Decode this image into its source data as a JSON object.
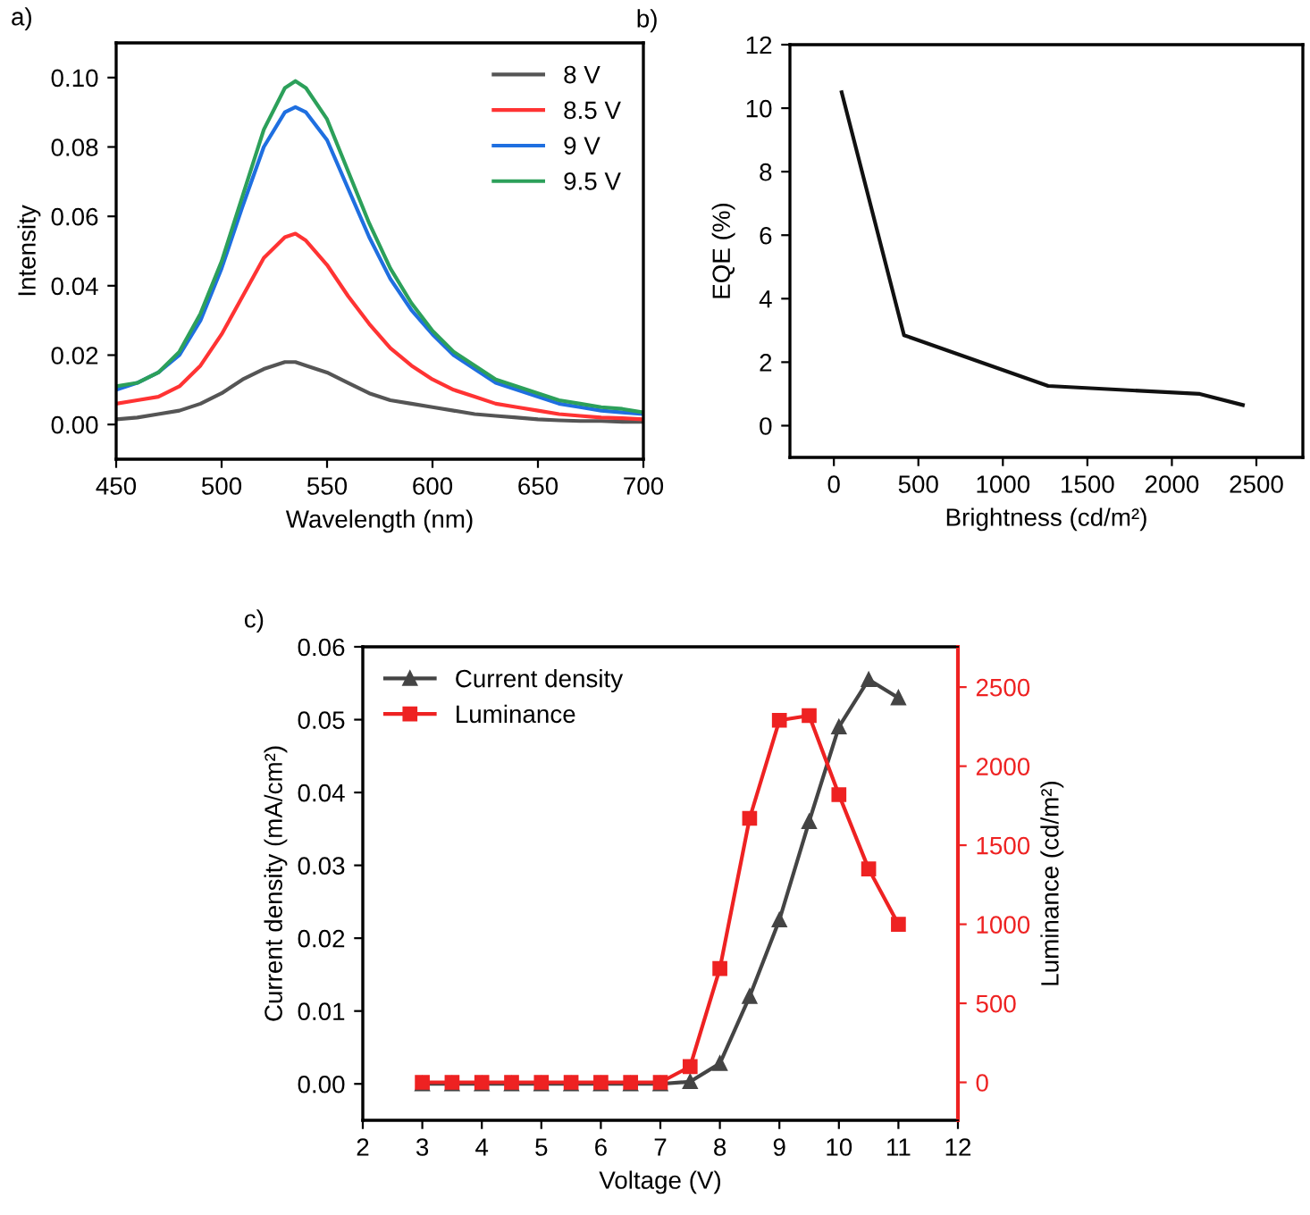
{
  "chart_data": [
    {
      "type": "line",
      "title": "a)",
      "xlabel": "Wavelength (nm)",
      "ylabel": "Intensity",
      "xlim": [
        450,
        700
      ],
      "ylim": [
        -0.01,
        0.11
      ],
      "xticks": [
        450,
        500,
        550,
        600,
        650,
        700
      ],
      "yticks": [
        {
          "value": 0,
          "label": "0.00"
        },
        {
          "value": 0.02,
          "label": "0.02"
        },
        {
          "value": 0.04,
          "label": "0.04"
        },
        {
          "value": 0.06,
          "label": "0.06"
        },
        {
          "value": 0.08,
          "label": "0.08"
        },
        {
          "value": 0.1,
          "label": "0.10"
        }
      ],
      "grid": false,
      "legend": "top right",
      "x": [
        450,
        460,
        470,
        480,
        490,
        500,
        510,
        520,
        530,
        535,
        540,
        550,
        560,
        570,
        580,
        590,
        600,
        610,
        620,
        630,
        640,
        650,
        660,
        670,
        680,
        690,
        700
      ],
      "series": [
        {
          "name": "8 V",
          "color": "#555555",
          "values": [
            0.0015,
            0.002,
            0.003,
            0.004,
            0.006,
            0.009,
            0.013,
            0.016,
            0.018,
            0.018,
            0.017,
            0.015,
            0.012,
            0.009,
            0.007,
            0.006,
            0.005,
            0.004,
            0.003,
            0.0025,
            0.002,
            0.0015,
            0.0012,
            0.001,
            0.001,
            0.0008,
            0.0008
          ]
        },
        {
          "name": "8.5 V",
          "color": "#ff3333",
          "values": [
            0.006,
            0.007,
            0.008,
            0.011,
            0.017,
            0.026,
            0.037,
            0.048,
            0.054,
            0.055,
            0.053,
            0.046,
            0.037,
            0.029,
            0.022,
            0.017,
            0.013,
            0.01,
            0.008,
            0.006,
            0.005,
            0.004,
            0.003,
            0.0025,
            0.002,
            0.0018,
            0.0015
          ]
        },
        {
          "name": "9 V",
          "color": "#1f6fe0",
          "values": [
            0.01,
            0.012,
            0.015,
            0.02,
            0.03,
            0.045,
            0.063,
            0.08,
            0.09,
            0.0915,
            0.09,
            0.082,
            0.068,
            0.054,
            0.042,
            0.033,
            0.026,
            0.02,
            0.016,
            0.012,
            0.01,
            0.008,
            0.006,
            0.005,
            0.004,
            0.0035,
            0.003
          ]
        },
        {
          "name": "9.5 V",
          "color": "#2ca05a",
          "values": [
            0.011,
            0.012,
            0.015,
            0.021,
            0.032,
            0.047,
            0.066,
            0.085,
            0.097,
            0.099,
            0.097,
            0.088,
            0.073,
            0.058,
            0.045,
            0.035,
            0.027,
            0.021,
            0.017,
            0.013,
            0.011,
            0.009,
            0.007,
            0.006,
            0.005,
            0.0045,
            0.0035
          ]
        }
      ]
    },
    {
      "type": "line",
      "title": "b)",
      "xlabel": "Brightness (cd/m²)",
      "ylabel": "EQE (%)",
      "xlim": [
        -260,
        2775
      ],
      "ylim": [
        -1,
        12
      ],
      "xticks": [
        0,
        500,
        1000,
        1500,
        2000,
        2500
      ],
      "yticks": [
        0,
        2,
        4,
        6,
        8,
        10,
        12
      ],
      "grid": false,
      "legend": false,
      "x": [
        46,
        415,
        1268,
        2165,
        2420
      ],
      "series": [
        {
          "color": "#111111",
          "values": [
            10.5,
            2.85,
            1.25,
            1.0,
            0.65
          ]
        }
      ]
    },
    {
      "type": "line",
      "title": "c)",
      "xlabel": "Voltage (V)",
      "ylabel": "Current density (mA/cm²)",
      "y2label": "Luminance (cd/m²)",
      "xlim": [
        2,
        12
      ],
      "ylim": [
        -0.005,
        0.06
      ],
      "y2lim": [
        -240,
        2755
      ],
      "xticks": [
        2,
        3,
        4,
        5,
        6,
        7,
        8,
        9,
        10,
        11,
        12
      ],
      "yticks": [
        {
          "value": 0,
          "label": "0.00"
        },
        {
          "value": 0.01,
          "label": "0.01"
        },
        {
          "value": 0.02,
          "label": "0.02"
        },
        {
          "value": 0.03,
          "label": "0.03"
        },
        {
          "value": 0.04,
          "label": "0.04"
        },
        {
          "value": 0.05,
          "label": "0.05"
        },
        {
          "value": 0.06,
          "label": "0.06"
        }
      ],
      "y2ticks": [
        0,
        500,
        1000,
        1500,
        2000,
        2500
      ],
      "grid": false,
      "legend": "top left",
      "x": [
        3,
        3.5,
        4,
        4.5,
        5,
        5.5,
        6,
        6.5,
        7,
        7.5,
        8,
        8.5,
        9,
        9.5,
        10,
        10.5,
        11
      ],
      "series": [
        {
          "name": "Current density",
          "color": "#444444",
          "marker": "triangle",
          "values": [
            0,
            0,
            0,
            0,
            0,
            0,
            0,
            0,
            0,
            0.0003,
            0.0028,
            0.012,
            0.0225,
            0.036,
            0.049,
            0.0555,
            0.053
          ]
        },
        {
          "name": "Luminance",
          "color": "#ee2222",
          "marker": "square",
          "axis": "y2",
          "values": [
            0,
            0,
            0,
            0,
            0,
            0,
            0,
            0,
            0,
            100,
            720,
            1670,
            2290,
            2320,
            1820,
            1350,
            1000
          ]
        }
      ]
    }
  ]
}
